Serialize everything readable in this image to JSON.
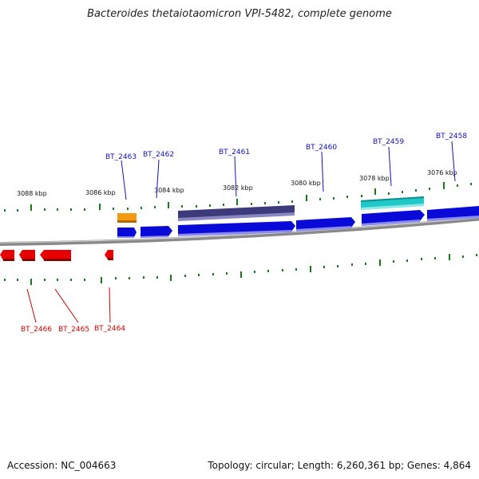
{
  "title": "Bacteroides thetaiotaomicron VPI-5482, complete genome",
  "footer": {
    "accession": "Accession: NC_004663",
    "summary": "Topology: circular; Length: 6,260,361 bp; Genes: 4,864"
  },
  "colors": {
    "forward_gene": "#0a0ad8",
    "reverse_gene": "#e60000",
    "slate_feature": "#3c3a7a",
    "cyan_feature": "#20c8c8",
    "orange_feature": "#f39a10",
    "tick": "#1a7a1a",
    "backbone": "#8a8a8a",
    "label_forward": "#1010c0",
    "label_reverse": "#d00000"
  },
  "scale_labels": [
    "3088 kbp",
    "3086 kbp",
    "3084 kbp",
    "3082 kbp",
    "3080 kbp",
    "3078 kbp",
    "3076 kbp"
  ],
  "gene_labels_forward": [
    "BT_2463",
    "BT_2462",
    "BT_2461",
    "BT_2460",
    "BT_2459",
    "BT_2458"
  ],
  "gene_labels_reverse": [
    "BT_2466",
    "BT_2465",
    "BT_2464"
  ]
}
